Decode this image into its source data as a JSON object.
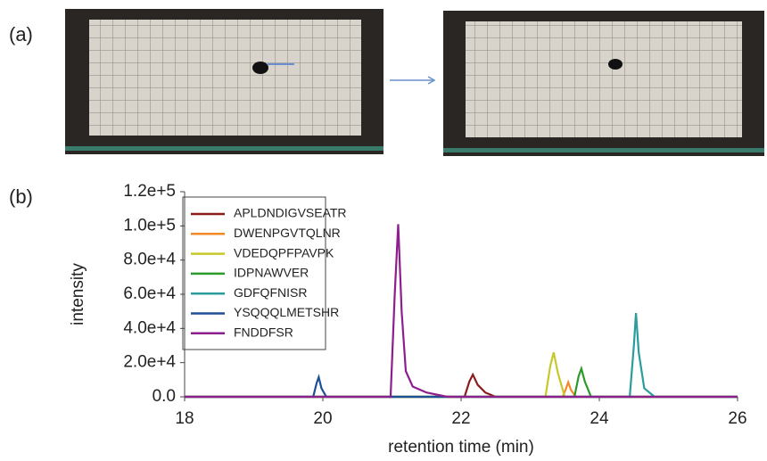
{
  "panel_labels": [
    "(a)",
    "(b)"
  ],
  "chart_data": {
    "type": "line",
    "x_label": "retention time (min)",
    "y_label": "intensity",
    "xlim": [
      18,
      26
    ],
    "xticks": [
      18,
      20,
      22,
      24,
      26
    ],
    "ylim": [
      0,
      120000
    ],
    "yticks": [
      {
        "value": 0,
        "label": "0.0"
      },
      {
        "value": 20000,
        "label": "2.0e+4"
      },
      {
        "value": 40000,
        "label": "4.0e+4"
      },
      {
        "value": 60000,
        "label": "6.0e+4"
      },
      {
        "value": 80000,
        "label": "8.0e+4"
      },
      {
        "value": 100000,
        "label": "1.0e+5"
      },
      {
        "value": 120000,
        "label": "1.2e+5"
      }
    ],
    "series": [
      {
        "name": "APLDNDIGVSEATR",
        "color": "#8b1c1c",
        "x": [
          18,
          22.05,
          22.12,
          22.17,
          22.24,
          22.35,
          22.5,
          26
        ],
        "values": [
          0,
          0,
          9000,
          13000,
          7000,
          2500,
          0,
          0
        ]
      },
      {
        "name": "DWENPGVTQLNR",
        "color": "#f28a28",
        "x": [
          18,
          23.47,
          23.52,
          23.55,
          23.59,
          23.66,
          26
        ],
        "values": [
          0,
          0,
          5000,
          8500,
          4000,
          0,
          0
        ]
      },
      {
        "name": "VDEDQPFPAVPK",
        "color": "#c6c82a",
        "x": [
          18,
          23.22,
          23.29,
          23.34,
          23.4,
          23.5,
          26
        ],
        "values": [
          0,
          0,
          18000,
          26000,
          14000,
          0,
          0
        ]
      },
      {
        "name": "IDPNAWVER",
        "color": "#2a9a2a",
        "x": [
          18,
          23.64,
          23.7,
          23.74,
          23.79,
          23.88,
          26
        ],
        "values": [
          0,
          0,
          12000,
          16500,
          9000,
          0,
          0
        ]
      },
      {
        "name": "GDFQFNISR",
        "color": "#2a9c9c",
        "x": [
          18,
          24.44,
          24.5,
          24.53,
          24.57,
          24.65,
          24.8,
          26
        ],
        "values": [
          0,
          0,
          30000,
          49000,
          26000,
          5000,
          0,
          0
        ]
      },
      {
        "name": "YSQQQLMETSHR",
        "color": "#1f4f96",
        "x": [
          18,
          19.86,
          19.91,
          19.94,
          19.98,
          20.05,
          26
        ],
        "values": [
          0,
          0,
          8000,
          11500,
          5000,
          0,
          0
        ]
      },
      {
        "name": "FNDDFSR",
        "color": "#8e1e8e",
        "x": [
          18,
          20.98,
          21.04,
          21.09,
          21.14,
          21.2,
          21.3,
          21.5,
          21.8,
          26
        ],
        "values": [
          0,
          0,
          60000,
          101000,
          50000,
          15000,
          6000,
          2500,
          0,
          0
        ]
      }
    ]
  }
}
